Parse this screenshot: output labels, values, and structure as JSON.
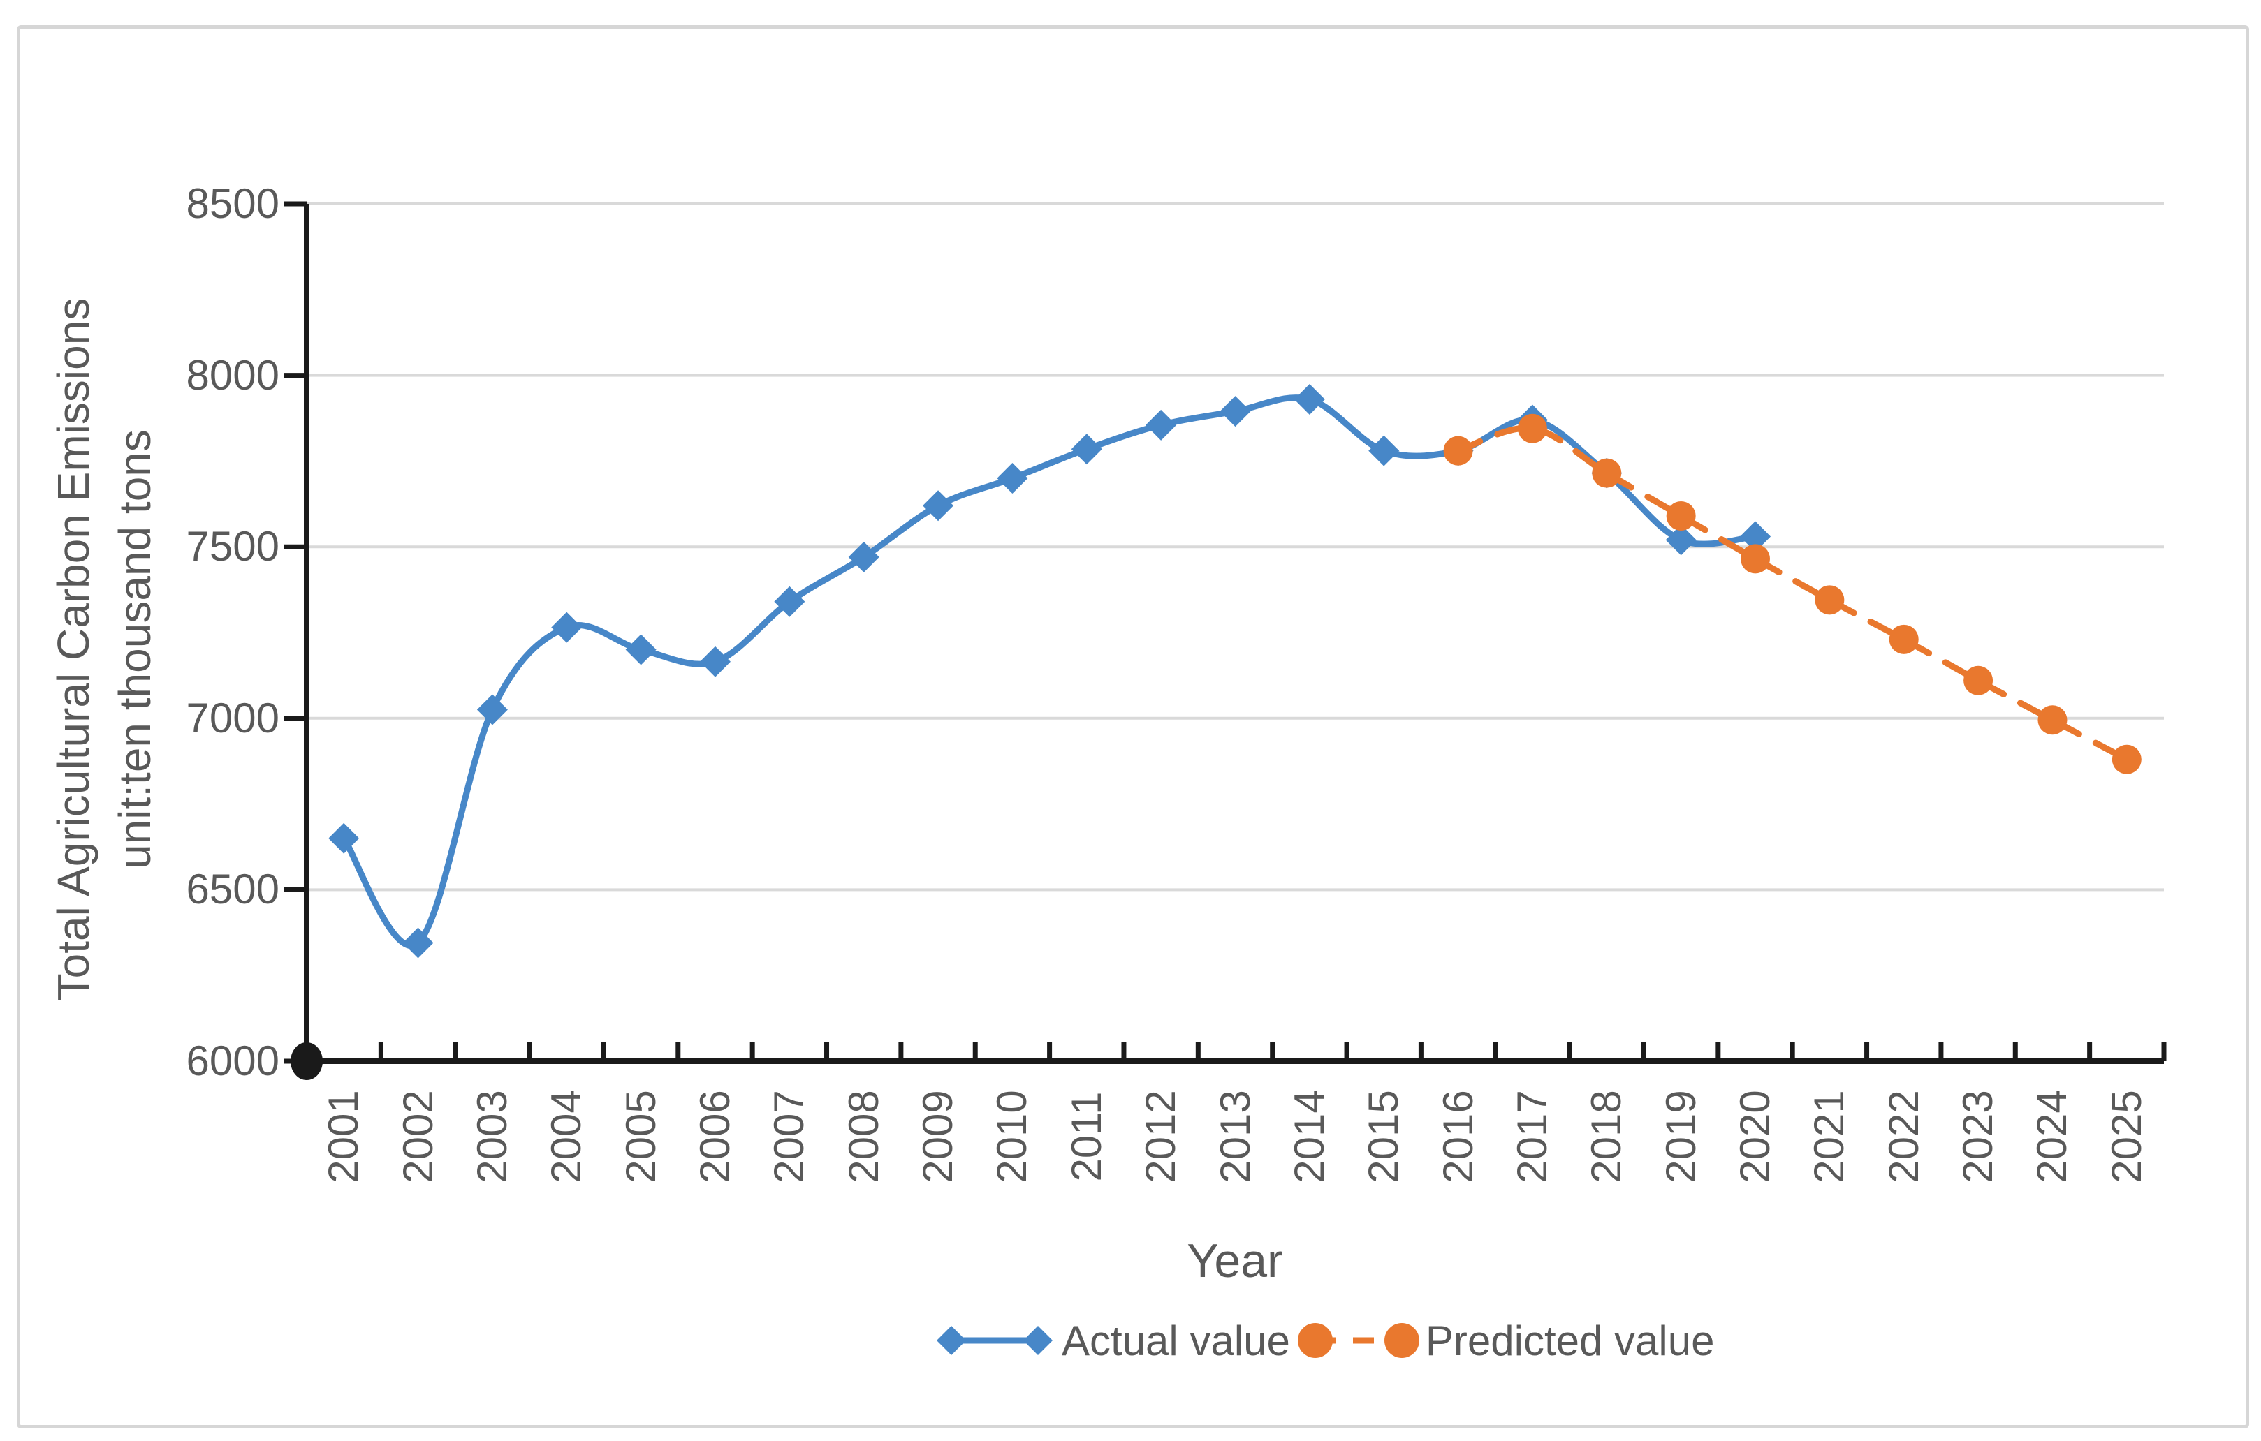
{
  "chart_data": {
    "type": "line",
    "title": "",
    "xlabel": "Year",
    "ylabel_line1": "Total Agricultural Carbon Emissions",
    "ylabel_line2": "unit:ten thousand tons",
    "x_categories": [
      2001,
      2002,
      2003,
      2004,
      2005,
      2006,
      2007,
      2008,
      2009,
      2010,
      2011,
      2012,
      2013,
      2014,
      2015,
      2016,
      2017,
      2018,
      2019,
      2020,
      2021,
      2022,
      2023,
      2024,
      2025
    ],
    "ylim": [
      6000,
      8500
    ],
    "y_ticks": [
      6000,
      6500,
      7000,
      7500,
      8000,
      8500
    ],
    "grid": "horizontal",
    "legend_position": "bottom",
    "series": [
      {
        "name": "Actual value",
        "color": "#4787C8",
        "marker": "diamond",
        "line_style": "solid",
        "smooth": true,
        "x": [
          2001,
          2002,
          2003,
          2004,
          2005,
          2006,
          2007,
          2008,
          2009,
          2010,
          2011,
          2012,
          2013,
          2014,
          2015,
          2016,
          2017,
          2018,
          2019,
          2020
        ],
        "values": [
          6650,
          6345,
          7025,
          7265,
          7200,
          7165,
          7340,
          7470,
          7620,
          7700,
          7785,
          7855,
          7895,
          7930,
          7780,
          7780,
          7870,
          7715,
          7520,
          7530
        ]
      },
      {
        "name": "Predicted value",
        "color": "#E9782E",
        "marker": "circle",
        "line_style": "dashed",
        "smooth": true,
        "x": [
          2016,
          2017,
          2018,
          2019,
          2020,
          2021,
          2022,
          2023,
          2024,
          2025
        ],
        "values": [
          7780,
          7845,
          7715,
          7590,
          7465,
          7345,
          7230,
          7110,
          6995,
          6880
        ]
      }
    ]
  },
  "legend": [
    {
      "label": "Actual value",
      "marker": "diamond",
      "line_style": "solid",
      "color": "#4787C8"
    },
    {
      "label": "Predicted value",
      "marker": "circle",
      "line_style": "dashed",
      "color": "#E9782E"
    }
  ],
  "colors": {
    "background": "#FFFFFF",
    "figure_border": "#D6D6D6",
    "gridline": "#D9D9D9",
    "axis": "#1A1A1A",
    "text": "#595959",
    "actual": "#4787C8",
    "predicted": "#E9782E"
  }
}
